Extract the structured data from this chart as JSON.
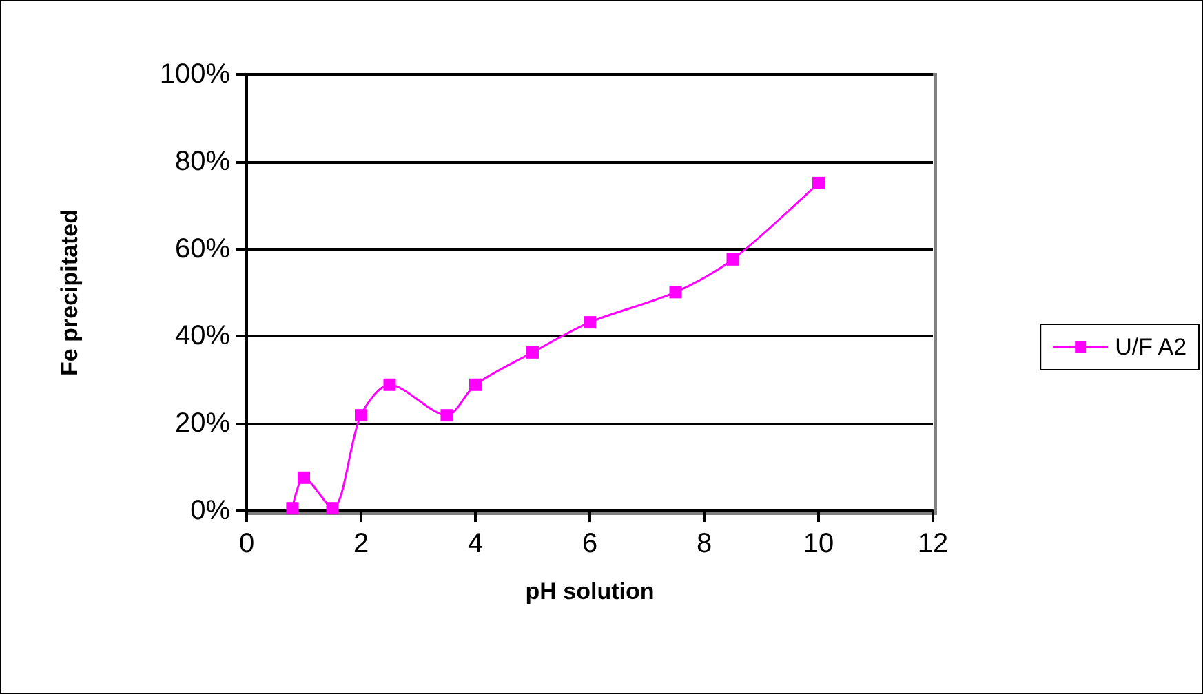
{
  "chart_data": {
    "type": "line",
    "xlabel": "pH solution",
    "ylabel": "Fe precipitated",
    "x": [
      0.8,
      1,
      1.5,
      2,
      2.5,
      3.5,
      4,
      5,
      6,
      7.5,
      8.5,
      10
    ],
    "series": [
      {
        "name": "U/F A2",
        "color": "#ff00ff",
        "values": [
          0.6,
          7.6,
          0.6,
          21.9,
          28.9,
          21.9,
          28.9,
          36.3,
          43.2,
          50.1,
          57.6,
          75.1
        ]
      }
    ],
    "xlim": [
      0,
      12
    ],
    "xticks": [
      0,
      2,
      4,
      6,
      8,
      10,
      12
    ],
    "ylim": [
      0,
      100
    ],
    "yticks": [
      {
        "value": 0,
        "label": "0%"
      },
      {
        "value": 20,
        "label": "20%"
      },
      {
        "value": 40,
        "label": "40%"
      },
      {
        "value": 60,
        "label": "60%"
      },
      {
        "value": 80,
        "label": "80%"
      },
      {
        "value": 100,
        "label": "100%"
      }
    ],
    "grid": "y",
    "legend": "right",
    "marker": "square",
    "line_style": "solid"
  }
}
